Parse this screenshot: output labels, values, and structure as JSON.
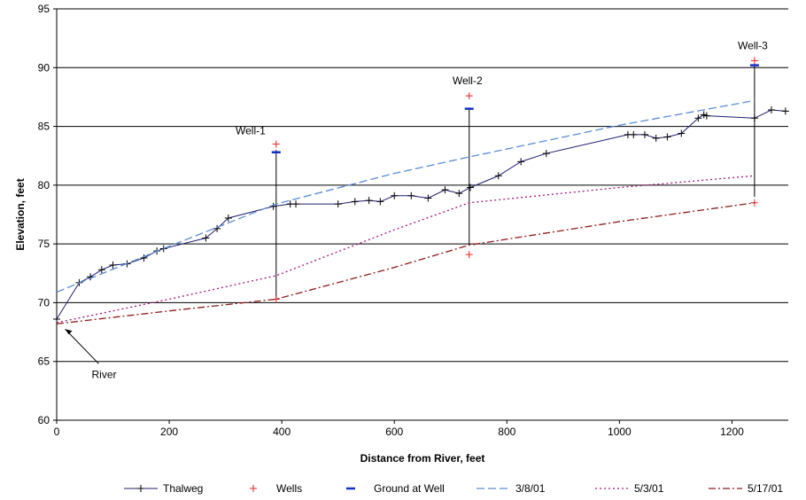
{
  "chart_data": {
    "type": "line",
    "xlabel": "Distance from River, feet",
    "ylabel": "Elevation, feet",
    "xlim": [
      0,
      1300
    ],
    "ylim": [
      60,
      95
    ],
    "xticks": [
      0,
      200,
      400,
      600,
      800,
      1000,
      1200
    ],
    "yticks": [
      60,
      65,
      70,
      75,
      80,
      85,
      90,
      95
    ],
    "grid": "horizontal",
    "legend": "bottom",
    "series": [
      {
        "name": "Thalweg",
        "style": "line-markers",
        "color": "#1f1f6e",
        "x": [
          0,
          40,
          60,
          80,
          100,
          125,
          155,
          178,
          190,
          265,
          285,
          305,
          385,
          415,
          425,
          500,
          530,
          555,
          575,
          600,
          630,
          660,
          690,
          715,
          735,
          785,
          825,
          870,
          1015,
          1025,
          1045,
          1065,
          1085,
          1110,
          1140,
          1150,
          1155,
          1240,
          1270,
          1295
        ],
        "y": [
          68.6,
          71.7,
          72.2,
          72.8,
          73.2,
          73.3,
          73.8,
          74.4,
          74.6,
          75.5,
          76.3,
          77.2,
          78.2,
          78.4,
          78.4,
          78.4,
          78.6,
          78.7,
          78.6,
          79.1,
          79.1,
          78.9,
          79.6,
          79.3,
          79.8,
          80.8,
          82.0,
          82.7,
          84.3,
          84.3,
          84.3,
          84.0,
          84.1,
          84.4,
          85.7,
          86.0,
          85.9,
          85.7,
          86.4,
          86.3
        ]
      },
      {
        "name": "Wells",
        "style": "markers",
        "color": "#e8231f",
        "x": [
          390,
          390,
          733,
          733,
          1240,
          1240
        ],
        "y": [
          83.5,
          70.3,
          87.6,
          74.1,
          90.6,
          78.5
        ]
      },
      {
        "name": "Ground at Well",
        "style": "markers",
        "color": "#1230c8",
        "x": [
          390,
          733,
          1240
        ],
        "y": [
          82.8,
          86.5,
          90.2
        ]
      },
      {
        "name": "3/8/01",
        "style": "dashed",
        "color": "#5b8ed6",
        "x": [
          0,
          200,
          390,
          600,
          733,
          1000,
          1240
        ],
        "y": [
          70.9,
          74.8,
          78.4,
          81.0,
          82.4,
          85.1,
          87.2
        ]
      },
      {
        "name": "5/3/01",
        "style": "dotted",
        "color": "#a8157f",
        "x": [
          0,
          200,
          390,
          600,
          733,
          1000,
          1240
        ],
        "y": [
          68.3,
          70.3,
          72.3,
          76.2,
          78.5,
          79.8,
          80.8
        ]
      },
      {
        "name": "5/17/01",
        "style": "dash-dot",
        "color": "#8c1a1a",
        "x": [
          0,
          200,
          390,
          600,
          733,
          1000,
          1240
        ],
        "y": [
          68.2,
          69.3,
          70.3,
          73.0,
          74.9,
          76.9,
          78.5
        ]
      }
    ],
    "well_lines": [
      {
        "x": 390,
        "y_top": 83.0,
        "y_bottom": 70.3
      },
      {
        "x": 733,
        "y_top": 86.6,
        "y_bottom": 74.9
      },
      {
        "x": 1240,
        "y_top": 90.3,
        "y_bottom": 79.0
      }
    ],
    "annotations": [
      {
        "text": "Well-1",
        "x": 390,
        "y": 83.5
      },
      {
        "text": "Well-2",
        "x": 733,
        "y": 87.6
      },
      {
        "text": "Well-3",
        "x": 1240,
        "y": 90.6
      },
      {
        "text": "River",
        "x": 15,
        "y": 68.2
      }
    ]
  }
}
